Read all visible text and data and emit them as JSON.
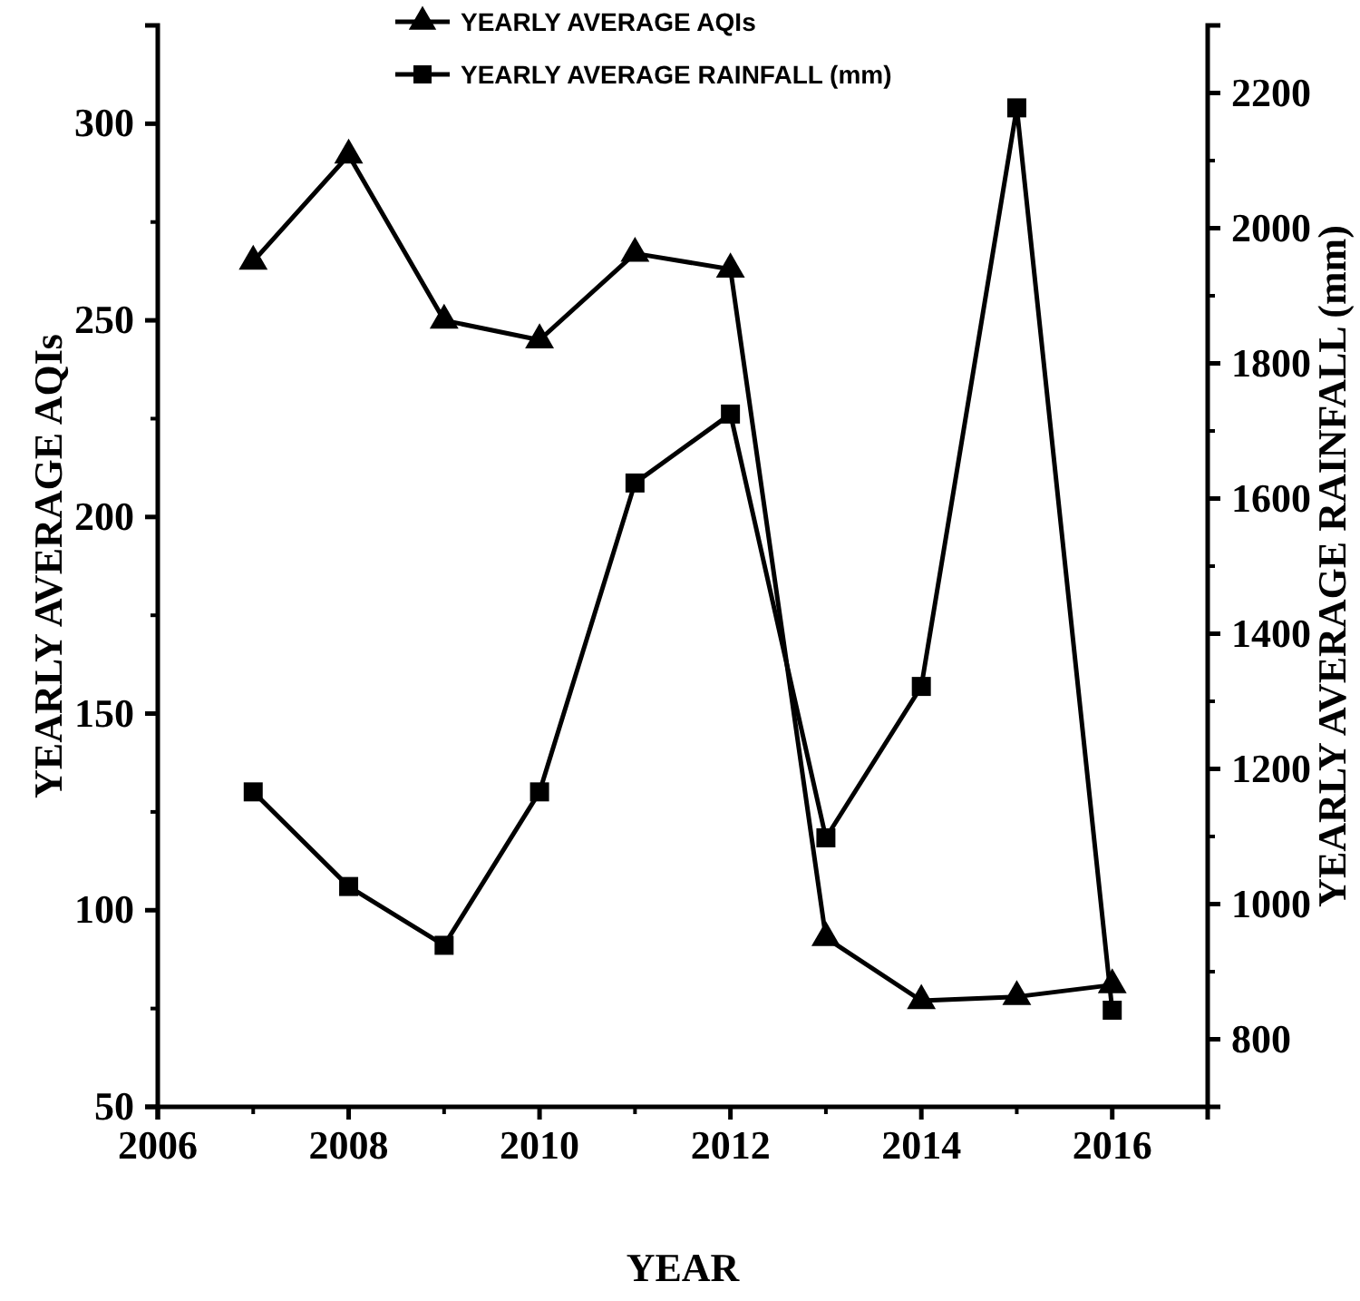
{
  "chart_data": {
    "type": "line",
    "xlabel": "YEAR",
    "ylabel": "YEARLY AVERAGE AQIs",
    "y2label": "YEARLY AVERAGE RAINFALL (mm)",
    "x": [
      2007,
      2008,
      2009,
      2010,
      2011,
      2012,
      2013,
      2014,
      2015,
      2016
    ],
    "xlim": [
      2006,
      2017
    ],
    "xticks": [
      2006,
      2008,
      2010,
      2012,
      2014,
      2016
    ],
    "ylim": [
      50,
      325
    ],
    "yticks": [
      50,
      100,
      150,
      200,
      250,
      300
    ],
    "y2lim": [
      700,
      2300
    ],
    "y2ticks": [
      800,
      1000,
      1200,
      1400,
      1600,
      1800,
      2000,
      2200
    ],
    "grid": false,
    "legend": "top",
    "line_style": "solid",
    "series": [
      {
        "name": "YEARLY AVERAGE AQIs",
        "color": "#000000",
        "marker": "triangle",
        "values": [
          265,
          292,
          250,
          245,
          267,
          263,
          93,
          77,
          78,
          81
        ]
      },
      {
        "name": "YEARLY AVERAGE RAINFALL (mm)",
        "color": "#000000",
        "marker": "square",
        "axis": "y2",
        "values": [
          1166,
          1026,
          939,
          1166,
          1623,
          1725,
          1098,
          1322,
          2178,
          843
        ]
      }
    ]
  }
}
